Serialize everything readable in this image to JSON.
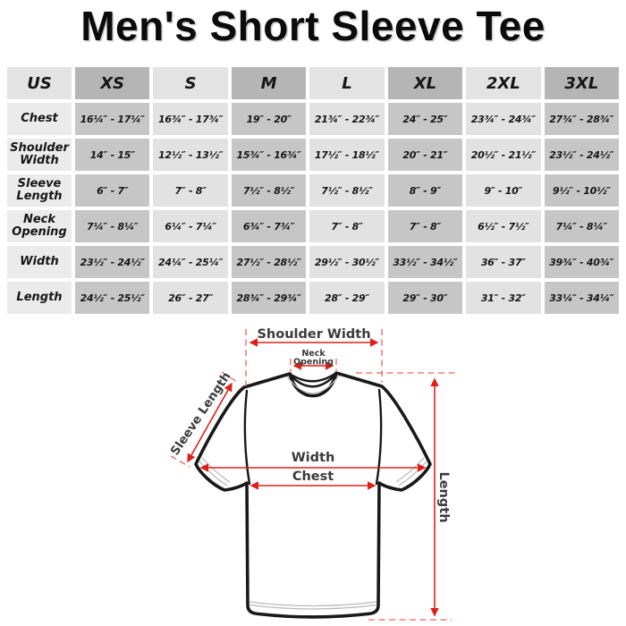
{
  "title": "Men's Short Sleeve Tee",
  "table": {
    "columns": [
      "US",
      "XS",
      "S",
      "M",
      "L",
      "XL",
      "2XL",
      "3XL"
    ],
    "rows": [
      {
        "label": "Chest",
        "values": [
          "16¼″ - 17¼″",
          "16¾″ - 17¾″",
          "19″ - 20″",
          "21¾″ - 22¾″",
          "24″ - 25″",
          "23¾″ - 24¾″",
          "27¾″ - 28¾″"
        ]
      },
      {
        "label": "Shoulder Width",
        "values": [
          "14″ - 15″",
          "12½″ - 13½″",
          "15¾″ - 16¾″",
          "17½″ - 18½″",
          "20″ - 21″",
          "20½″ - 21½″",
          "23½″ - 24½″"
        ]
      },
      {
        "label": "Sleeve Length",
        "values": [
          "6″ - 7″",
          "7″ - 8″",
          "7½″ - 8½″",
          "7½″ - 8½″",
          "8″ - 9″",
          "9″ - 10″",
          "9½″ - 10½″"
        ]
      },
      {
        "label": "Neck Opening",
        "values": [
          "7¼″ - 8¼″",
          "6¼″ - 7¼″",
          "6¾″ - 7¾″",
          "7″ - 8″",
          "7″ - 8″",
          "6½″ - 7½″",
          "7¼″ - 8¼″"
        ]
      },
      {
        "label": "Width",
        "values": [
          "23½″ - 24½″",
          "24¼″ - 25¼″",
          "27½″ - 28½″",
          "29½″ - 30½″",
          "33½″ - 34½″",
          "36″ - 37″",
          "39¾″ - 40¾″"
        ]
      },
      {
        "label": "Length",
        "values": [
          "24½″ - 25½″",
          "26″ - 27″",
          "28¾″ - 29¾″",
          "28″ - 29″",
          "29″ - 30″",
          "31″ - 32″",
          "33¼″ - 34¼″"
        ]
      }
    ]
  },
  "diagram": {
    "shoulder_width": "Shoulder Width",
    "neck_line1": "Neck",
    "neck_line2": "Opening",
    "sleeve_length": "Sleeve Length",
    "width": "Width",
    "chest": "Chest",
    "length": "Length"
  },
  "colors": {
    "annotation_red": "#dd2018",
    "annotation_red_dashed": "#ee6458",
    "header_dark": "#b5b5b5",
    "header_light": "#e3e3e3",
    "cell_dark": "#c6c6c6",
    "cell_light": "#e2e2e2",
    "label_cell": "#ebebeb",
    "outline_black": "#191919",
    "label_gray": "#3b3b3b"
  }
}
